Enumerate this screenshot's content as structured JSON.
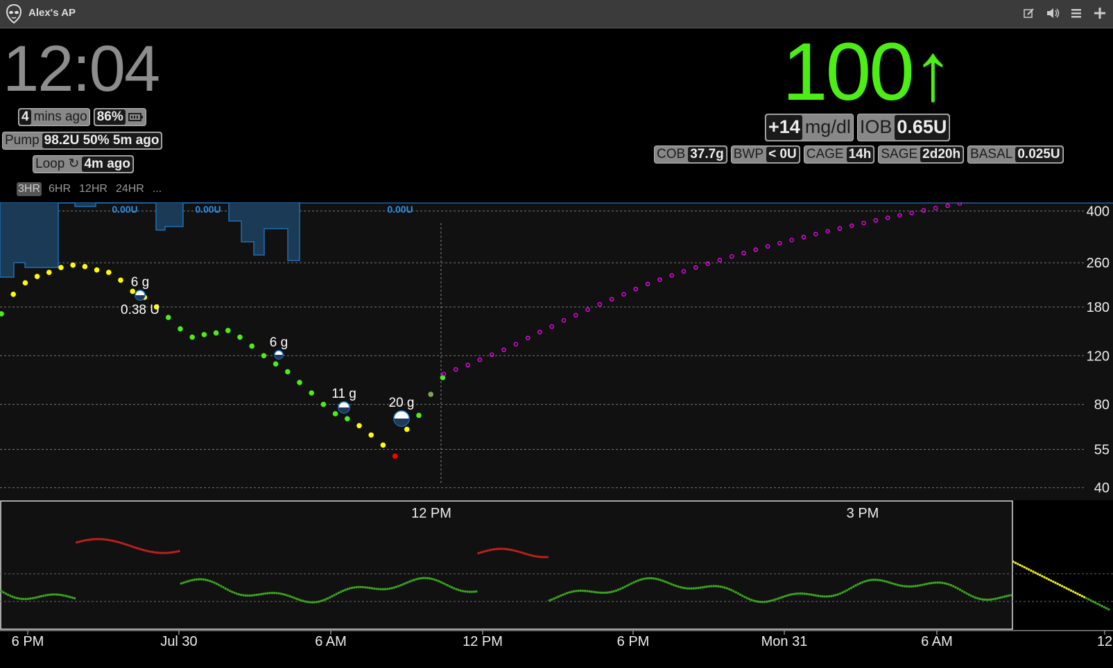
{
  "window": {
    "title": "Alex's AP"
  },
  "toolbar": {
    "icons": [
      "edit-icon",
      "volume-icon",
      "menu-icon",
      "plus-icon"
    ]
  },
  "clock": "12:04",
  "status": {
    "time_ago_value": "4",
    "time_ago_text": "mins ago",
    "battery": "86%",
    "pump_label": "Pump",
    "pump_value": "98.2U 50% 5m ago",
    "loop_label": "Loop ↻",
    "loop_value": "4m ago"
  },
  "bg": {
    "value": "100",
    "arrow": "↑",
    "delta": "+14",
    "units": "mg/dl",
    "iob_label": "IOB",
    "iob_value": "0.65U"
  },
  "pills": [
    {
      "label": "COB",
      "value": "37.7g"
    },
    {
      "label": "BWP",
      "value": "< 0U"
    },
    {
      "label": "CAGE",
      "value": "14h"
    },
    {
      "label": "SAGE",
      "value": "2d20h"
    },
    {
      "label": "BASAL",
      "value": "0.025U"
    }
  ],
  "time_ranges": [
    "3HR",
    "6HR",
    "12HR",
    "24HR",
    "..."
  ],
  "active_range": "3HR",
  "colors": {
    "bg_in_range": "#4cee16",
    "high": "#ffff00",
    "low": "#ff0000",
    "forecast": "#ff00ff",
    "basal": "#1e88e5"
  },
  "chart_data": {
    "type": "scatter",
    "y_ticks": [
      400,
      260,
      180,
      120,
      80,
      55,
      40
    ],
    "basal_labels": [
      "0.00U",
      "0.00U",
      "0.00U"
    ],
    "treatments": [
      {
        "carbs": "6 g",
        "insulin": "0.38 U"
      },
      {
        "carbs": "6 g",
        "insulin": ""
      },
      {
        "carbs": "11 g",
        "insulin": ""
      },
      {
        "carbs": "20 g",
        "insulin": ""
      }
    ],
    "main_x_ticks": [
      "12 PM",
      "3 PM"
    ],
    "overview_x_ticks": [
      "6 PM",
      "Jul 30",
      "6 AM",
      "12 PM",
      "6 PM",
      "Mon 31",
      "6 AM",
      "12"
    ],
    "readings": [
      170,
      200,
      220,
      232,
      240,
      250,
      255,
      252,
      245,
      240,
      225,
      205,
      195,
      180,
      165,
      150,
      140,
      143,
      145,
      148,
      140,
      130,
      120,
      112,
      105,
      96,
      88,
      80,
      74,
      71,
      67,
      62,
      57,
      52,
      65,
      73,
      87,
      100
    ],
    "forecast": [
      103,
      107,
      111,
      116,
      121,
      126,
      132,
      139,
      146,
      153,
      161,
      168,
      176,
      184,
      192,
      200,
      209,
      218,
      226,
      234,
      242,
      250,
      258,
      266,
      274,
      282,
      290,
      298,
      306,
      314,
      322,
      330,
      338,
      346,
      354,
      362,
      370,
      378,
      386,
      394,
      402,
      410,
      418,
      426
    ]
  }
}
